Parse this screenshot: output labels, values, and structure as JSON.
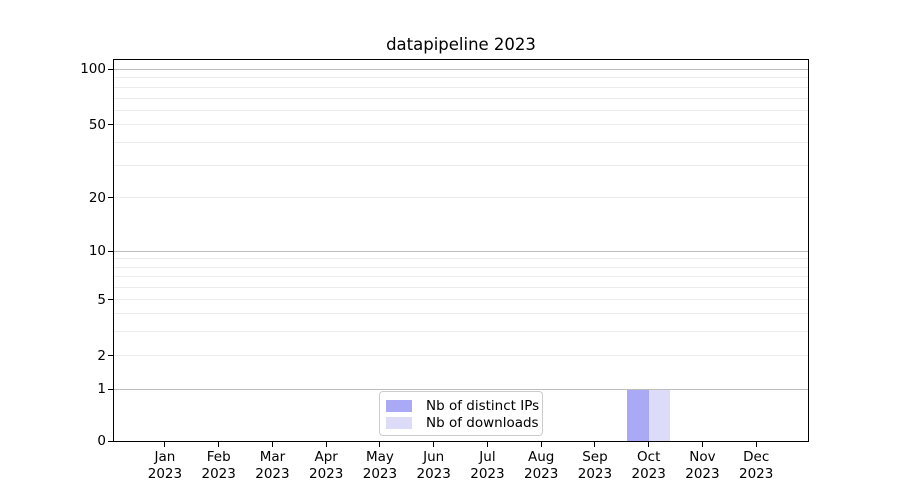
{
  "chart_data": {
    "type": "bar",
    "title": "datapipeline 2023",
    "categories": [
      "Jan 2023",
      "Feb 2023",
      "Mar 2023",
      "Apr 2023",
      "May 2023",
      "Jun 2023",
      "Jul 2023",
      "Aug 2023",
      "Sep 2023",
      "Oct 2023",
      "Nov 2023",
      "Dec 2023"
    ],
    "series": [
      {
        "name": "Nb of distinct IPs",
        "color": "#a9a9f5",
        "values": [
          0,
          0,
          0,
          0,
          0,
          0,
          0,
          0,
          0,
          1,
          0,
          0
        ]
      },
      {
        "name": "Nb of downloads",
        "color": "#dcdcf8",
        "values": [
          0,
          0,
          0,
          0,
          0,
          0,
          0,
          0,
          0,
          1,
          0,
          0
        ]
      }
    ],
    "xlabel": "",
    "ylabel": "",
    "y_axis": {
      "scale": "log-like",
      "tick_values": [
        0,
        1,
        2,
        5,
        10,
        20,
        50,
        100
      ],
      "tick_labels": [
        "0",
        "1",
        "2",
        "5",
        "10",
        "20",
        "50",
        "100"
      ],
      "minor_grid_values": [
        3,
        4,
        6,
        7,
        8,
        9,
        30,
        40,
        60,
        70,
        80,
        90
      ],
      "major_grid_values": [
        1,
        10,
        100
      ],
      "ylim": [
        0,
        113
      ],
      "anchor_fracs": {
        "0": 1.0,
        "1": 0.8648,
        "2": 0.7769,
        "5": 0.6299,
        "10": 0.5026,
        "20": 0.3622,
        "50": 0.1706,
        "100": 0.0249
      }
    },
    "grid": {
      "horizontal": true,
      "vertical": false
    },
    "legend_position": "lower center"
  },
  "legend": {
    "items": [
      {
        "label": "Nb of distinct IPs",
        "color": "#a9a9f5"
      },
      {
        "label": "Nb of downloads",
        "color": "#dcdcf8"
      }
    ]
  },
  "colors": {
    "background": "#ffffff",
    "spine": "#000000",
    "grid_major": "#bdbdbd",
    "grid_minor": "#ececec",
    "bar_distinct_ips": "#a9a9f5",
    "bar_downloads": "#dcdcf8",
    "legend_border": "#cccccc",
    "text": "#000000"
  }
}
